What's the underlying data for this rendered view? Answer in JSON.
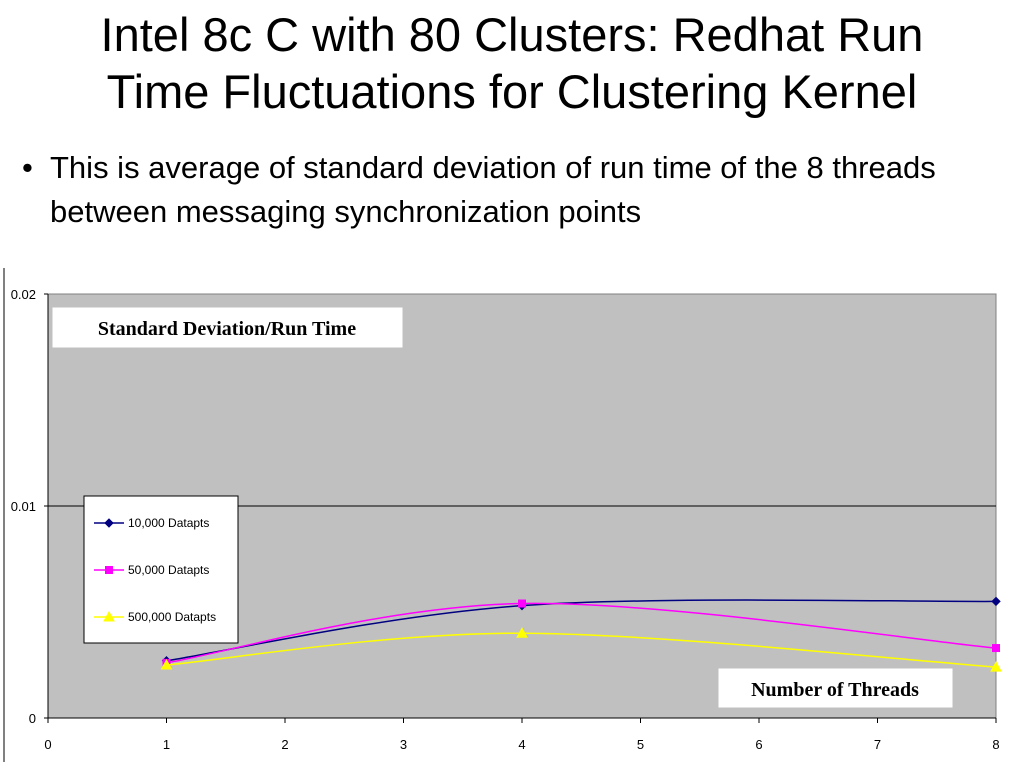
{
  "slide": {
    "title_line1": "Intel 8c C with 80 Clusters: Redhat Run",
    "title_line2": "Time Fluctuations for Clustering Kernel",
    "bullets": [
      "This is average of standard deviation of run time of the 8 threads between messaging synchronization points"
    ]
  },
  "chart_data": {
    "type": "line",
    "title": "Standard Deviation/Run Time",
    "xlabel": "Number of Threads",
    "ylabel": "",
    "xlim": [
      0,
      8
    ],
    "ylim": [
      0,
      0.02
    ],
    "x_ticks": [
      "0",
      "1",
      "2",
      "3",
      "4",
      "5",
      "6",
      "7",
      "8"
    ],
    "y_ticks": [
      "0",
      "0.01",
      "0.02"
    ],
    "legend_position": "left-middle",
    "plot_background": "#c0c0c0",
    "series": [
      {
        "name": "10,000 Datapts",
        "color": "#000080",
        "marker": "diamond",
        "x": [
          1,
          4,
          8
        ],
        "values": [
          0.0027,
          0.0053,
          0.0055
        ]
      },
      {
        "name": "50,000 Datapts",
        "color": "#ff00ff",
        "marker": "square",
        "x": [
          1,
          4,
          8
        ],
        "values": [
          0.0026,
          0.0054,
          0.0033
        ]
      },
      {
        "name": "500,000 Datapts",
        "color": "#ffff00",
        "marker": "triangle",
        "x": [
          1,
          4,
          8
        ],
        "values": [
          0.0025,
          0.004,
          0.0024
        ]
      }
    ]
  }
}
